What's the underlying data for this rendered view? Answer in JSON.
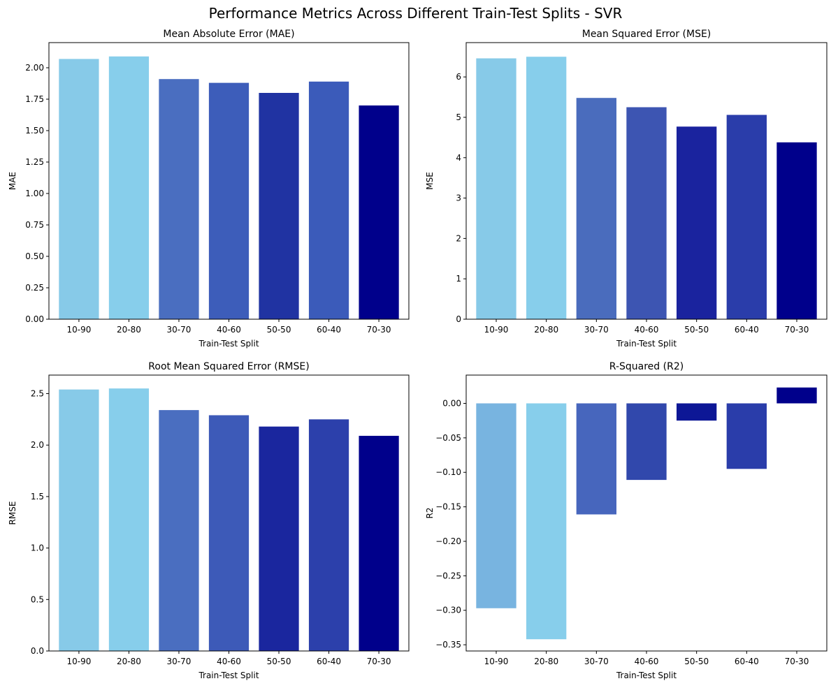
{
  "figure": {
    "suptitle": "Performance Metrics Across Different Train-Test Splits - SVR"
  },
  "chart_data": [
    {
      "type": "bar",
      "title": "Mean Absolute Error (MAE)",
      "xlabel": "Train-Test Split",
      "ylabel": "MAE",
      "categories": [
        "10-90",
        "20-80",
        "30-70",
        "40-60",
        "50-50",
        "60-40",
        "70-30"
      ],
      "values": [
        2.07,
        2.09,
        1.91,
        1.88,
        1.8,
        1.89,
        1.7
      ],
      "colors": [
        "#87CAE8",
        "#87CEEB",
        "#4A6EC0",
        "#3D5DBA",
        "#2033A2",
        "#3B5BBA",
        "#00008B"
      ],
      "ylim": [
        0,
        2.2
      ],
      "yticks": [
        0,
        0.25,
        0.5,
        0.75,
        1.0,
        1.25,
        1.5,
        1.75,
        2.0
      ],
      "ytick_labels": [
        "0.00",
        "0.25",
        "0.50",
        "0.75",
        "1.00",
        "1.25",
        "1.50",
        "1.75",
        "2.00"
      ],
      "grid": false,
      "legend": "none"
    },
    {
      "type": "bar",
      "title": "Mean Squared Error (MSE)",
      "xlabel": "Train-Test Split",
      "ylabel": "MSE",
      "categories": [
        "10-90",
        "20-80",
        "30-70",
        "40-60",
        "50-50",
        "60-40",
        "70-30"
      ],
      "values": [
        6.46,
        6.5,
        5.48,
        5.25,
        4.77,
        5.06,
        4.38
      ],
      "colors": [
        "#87CAE8",
        "#87CEEB",
        "#4A6CBD",
        "#3D55B2",
        "#1A239E",
        "#2A3DAA",
        "#00008B"
      ],
      "ylim": [
        0,
        6.85
      ],
      "yticks": [
        0,
        1,
        2,
        3,
        4,
        5,
        6
      ],
      "ytick_labels": [
        "0",
        "1",
        "2",
        "3",
        "4",
        "5",
        "6"
      ],
      "grid": false,
      "legend": "none"
    },
    {
      "type": "bar",
      "title": "Root Mean Squared Error (RMSE)",
      "xlabel": "Train-Test Split",
      "ylabel": "RMSE",
      "categories": [
        "10-90",
        "20-80",
        "30-70",
        "40-60",
        "50-50",
        "60-40",
        "70-30"
      ],
      "values": [
        2.54,
        2.55,
        2.34,
        2.29,
        2.18,
        2.25,
        2.09
      ],
      "colors": [
        "#87CAE8",
        "#87CEEB",
        "#4A6EC0",
        "#3D5AB8",
        "#1A269E",
        "#2C40AB",
        "#00008B"
      ],
      "ylim": [
        0,
        2.68
      ],
      "yticks": [
        0,
        0.5,
        1.0,
        1.5,
        2.0,
        2.5
      ],
      "ytick_labels": [
        "0.0",
        "0.5",
        "1.0",
        "1.5",
        "2.0",
        "2.5"
      ],
      "grid": false,
      "legend": "none"
    },
    {
      "type": "bar",
      "title": "R-Squared (R2)",
      "xlabel": "Train-Test Split",
      "ylabel": "R2",
      "categories": [
        "10-90",
        "20-80",
        "30-70",
        "40-60",
        "50-50",
        "60-40",
        "70-30"
      ],
      "values": [
        -0.297,
        -0.342,
        -0.161,
        -0.111,
        -0.025,
        -0.095,
        0.023
      ],
      "colors": [
        "#78B4E0",
        "#87CEEB",
        "#4766BD",
        "#3148AC",
        "#0D1796",
        "#2A3DAA",
        "#00008B"
      ],
      "ylim": [
        -0.359,
        0.041
      ],
      "yticks": [
        -0.35,
        -0.3,
        -0.25,
        -0.2,
        -0.15,
        -0.1,
        -0.05,
        0
      ],
      "ytick_labels": [
        "−0.35",
        "−0.30",
        "−0.25",
        "−0.20",
        "−0.15",
        "−0.10",
        "−0.05",
        "0.00"
      ],
      "grid": false,
      "legend": "none"
    }
  ]
}
